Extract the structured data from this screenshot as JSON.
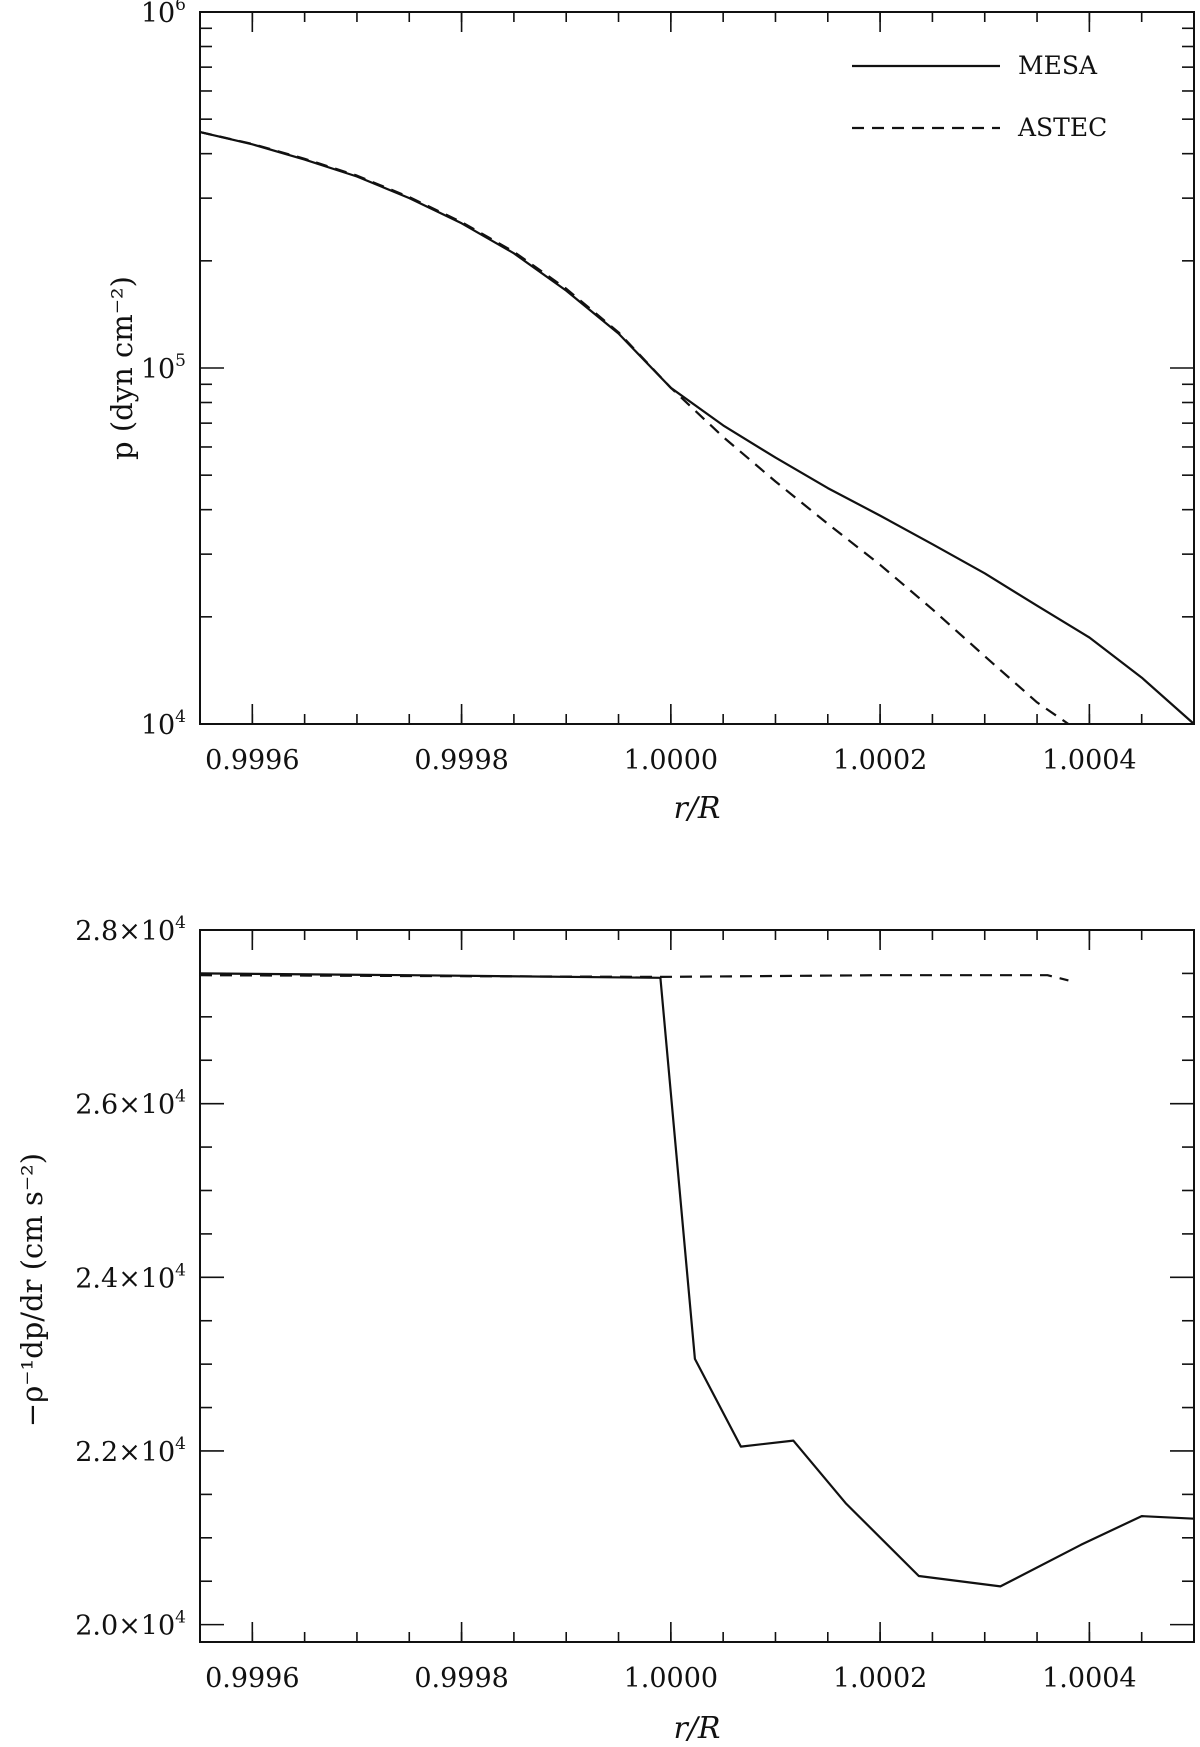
{
  "chart_data": [
    {
      "type": "line",
      "title": "",
      "xlabel": "r/R",
      "ylabel": "p (dyn cm⁻²)",
      "yscale": "log",
      "xlim": [
        0.99955,
        1.0005
      ],
      "ylim": [
        10000,
        1000000
      ],
      "x_ticks": [
        "0.9996",
        "0.9998",
        "1.0000",
        "1.0002",
        "1.0004"
      ],
      "y_ticks": [
        {
          "mantissa": "10",
          "exp": "6"
        },
        {
          "mantissa": "10",
          "exp": "5"
        },
        {
          "mantissa": "10",
          "exp": "4"
        }
      ],
      "legend": {
        "position": "top-right"
      },
      "grid": false,
      "series": [
        {
          "name": "MESA",
          "style": "solid",
          "x": [
            0.99955,
            0.9996,
            0.99965,
            0.9997,
            0.99975,
            0.9998,
            0.99985,
            0.9999,
            0.99995,
            1.0,
            1.00005,
            1.0001,
            1.00015,
            1.0002,
            1.00025,
            1.0003,
            1.00035,
            1.0004,
            1.00045,
            1.0005
          ],
          "y": [
            460000,
            425000,
            385000,
            345000,
            300000,
            255000,
            210000,
            165000,
            125000,
            88000,
            69000,
            56000,
            46000,
            38500,
            32000,
            26500,
            21500,
            17500,
            13500,
            10000
          ]
        },
        {
          "name": "ASTEC",
          "style": "dashed",
          "x": [
            0.99955,
            0.9996,
            0.99965,
            0.9997,
            0.99975,
            0.9998,
            0.99985,
            0.9999,
            0.99995,
            1.0,
            1.00005,
            1.0001,
            1.00015,
            1.0002,
            1.00025,
            1.0003,
            1.00035,
            1.00038
          ],
          "y": [
            460000,
            426000,
            387000,
            347000,
            302000,
            257000,
            212000,
            167000,
            126000,
            88000,
            64000,
            48000,
            36500,
            28000,
            21000,
            15500,
            11500,
            10000
          ]
        }
      ]
    },
    {
      "type": "line",
      "title": "",
      "xlabel": "r/R",
      "ylabel": "−ρ⁻¹dp/dr (cm s⁻²)",
      "xlim": [
        0.99955,
        1.0005
      ],
      "ylim": [
        19800,
        28000
      ],
      "x_ticks": [
        "0.9996",
        "0.9998",
        "1.0000",
        "1.0002",
        "1.0004"
      ],
      "y_ticks": [
        {
          "value": 28000,
          "mantissa": "2.8×10",
          "exp": "4"
        },
        {
          "value": 26000,
          "mantissa": "2.6×10",
          "exp": "4"
        },
        {
          "value": 24000,
          "mantissa": "2.4×10",
          "exp": "4"
        },
        {
          "value": 22000,
          "mantissa": "2.2×10",
          "exp": "4"
        },
        {
          "value": 20000,
          "mantissa": "2.0×10",
          "exp": "4"
        }
      ],
      "grid": false,
      "series": [
        {
          "name": "MESA",
          "style": "solid",
          "x": [
            0.99955,
            0.99975,
            0.99999,
            1.000023,
            1.000067,
            1.000117,
            1.000167,
            1.000237,
            1.000315,
            1.000392,
            1.00045,
            1.0005
          ],
          "y": [
            27500,
            27480,
            27450,
            23060,
            22050,
            22120,
            21400,
            20560,
            20440,
            20920,
            21250,
            21220
          ]
        },
        {
          "name": "ASTEC",
          "style": "dashed",
          "x": [
            0.99955,
            0.99975,
            0.99999,
            1.0001,
            1.0002,
            1.00036,
            1.00038
          ],
          "y": [
            27480,
            27470,
            27460,
            27470,
            27480,
            27480,
            27420
          ]
        }
      ]
    }
  ]
}
